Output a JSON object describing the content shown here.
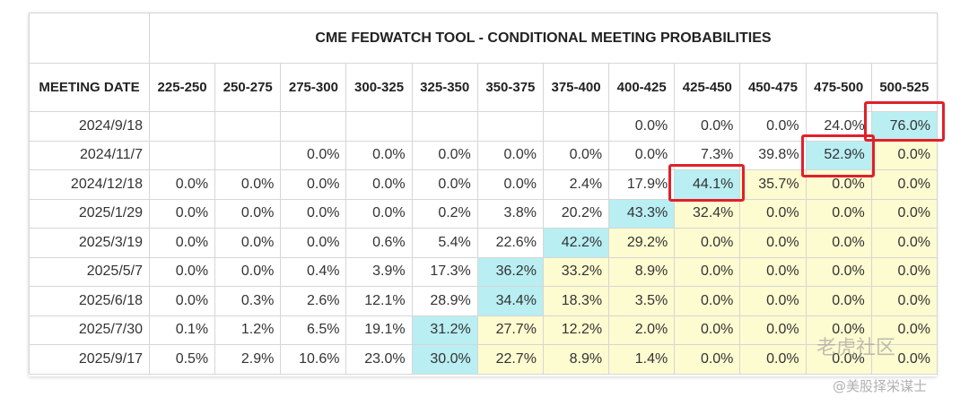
{
  "title": "CME FEDWATCH TOOL - CONDITIONAL MEETING PROBABILITIES",
  "date_header": "MEETING DATE",
  "columns": [
    "225-250",
    "250-275",
    "275-300",
    "300-325",
    "325-350",
    "350-375",
    "375-400",
    "400-425",
    "425-450",
    "450-475",
    "475-500",
    "500-525"
  ],
  "rows": [
    {
      "date": "2024/9/18",
      "values": [
        "",
        "",
        "",
        "",
        "",
        "",
        "",
        "0.0%",
        "0.0%",
        "0.0%",
        "24.0%",
        "76.0%"
      ],
      "shade": [
        "",
        "",
        "",
        "",
        "",
        "",
        "",
        "",
        "",
        "",
        "",
        "b"
      ]
    },
    {
      "date": "2024/11/7",
      "values": [
        "",
        "",
        "0.0%",
        "0.0%",
        "0.0%",
        "0.0%",
        "0.0%",
        "0.0%",
        "7.3%",
        "39.8%",
        "52.9%",
        "0.0%"
      ],
      "shade": [
        "",
        "",
        "",
        "",
        "",
        "",
        "",
        "",
        "",
        "",
        "b",
        "y"
      ]
    },
    {
      "date": "2024/12/18",
      "values": [
        "0.0%",
        "0.0%",
        "0.0%",
        "0.0%",
        "0.0%",
        "0.0%",
        "2.4%",
        "17.9%",
        "44.1%",
        "35.7%",
        "0.0%",
        "0.0%"
      ],
      "shade": [
        "",
        "",
        "",
        "",
        "",
        "",
        "",
        "",
        "b",
        "y",
        "y",
        "y"
      ]
    },
    {
      "date": "2025/1/29",
      "values": [
        "0.0%",
        "0.0%",
        "0.0%",
        "0.0%",
        "0.2%",
        "3.8%",
        "20.2%",
        "43.3%",
        "32.4%",
        "0.0%",
        "0.0%",
        "0.0%"
      ],
      "shade": [
        "",
        "",
        "",
        "",
        "",
        "",
        "",
        "b",
        "y",
        "y",
        "y",
        "y"
      ]
    },
    {
      "date": "2025/3/19",
      "values": [
        "0.0%",
        "0.0%",
        "0.0%",
        "0.6%",
        "5.4%",
        "22.6%",
        "42.2%",
        "29.2%",
        "0.0%",
        "0.0%",
        "0.0%",
        "0.0%"
      ],
      "shade": [
        "",
        "",
        "",
        "",
        "",
        "",
        "b",
        "y",
        "y",
        "y",
        "y",
        "y"
      ]
    },
    {
      "date": "2025/5/7",
      "values": [
        "0.0%",
        "0.0%",
        "0.4%",
        "3.9%",
        "17.3%",
        "36.2%",
        "33.2%",
        "8.9%",
        "0.0%",
        "0.0%",
        "0.0%",
        "0.0%"
      ],
      "shade": [
        "",
        "",
        "",
        "",
        "",
        "b",
        "y",
        "y",
        "y",
        "y",
        "y",
        "y"
      ]
    },
    {
      "date": "2025/6/18",
      "values": [
        "0.0%",
        "0.3%",
        "2.6%",
        "12.1%",
        "28.9%",
        "34.4%",
        "18.3%",
        "3.5%",
        "0.0%",
        "0.0%",
        "0.0%",
        "0.0%"
      ],
      "shade": [
        "",
        "",
        "",
        "",
        "",
        "b",
        "y",
        "y",
        "y",
        "y",
        "y",
        "y"
      ]
    },
    {
      "date": "2025/7/30",
      "values": [
        "0.1%",
        "1.2%",
        "6.5%",
        "19.1%",
        "31.2%",
        "27.7%",
        "12.2%",
        "2.0%",
        "0.0%",
        "0.0%",
        "0.0%",
        "0.0%"
      ],
      "shade": [
        "",
        "",
        "",
        "",
        "b",
        "y",
        "y",
        "y",
        "y",
        "y",
        "y",
        "y"
      ]
    },
    {
      "date": "2025/9/17",
      "values": [
        "0.5%",
        "2.9%",
        "10.6%",
        "23.0%",
        "30.0%",
        "22.7%",
        "8.9%",
        "1.4%",
        "0.0%",
        "0.0%",
        "0.0%",
        "0.0%"
      ],
      "shade": [
        "",
        "",
        "",
        "",
        "b",
        "y",
        "y",
        "y",
        "y",
        "y",
        "y",
        "y"
      ]
    }
  ],
  "colors": {
    "highest": "#b9eef2",
    "lower_range": "#fdfbd0",
    "highlight_box": "#e0202a"
  },
  "watermark": {
    "line1": "老虎社区",
    "line2": "@美股择栄谋士"
  }
}
